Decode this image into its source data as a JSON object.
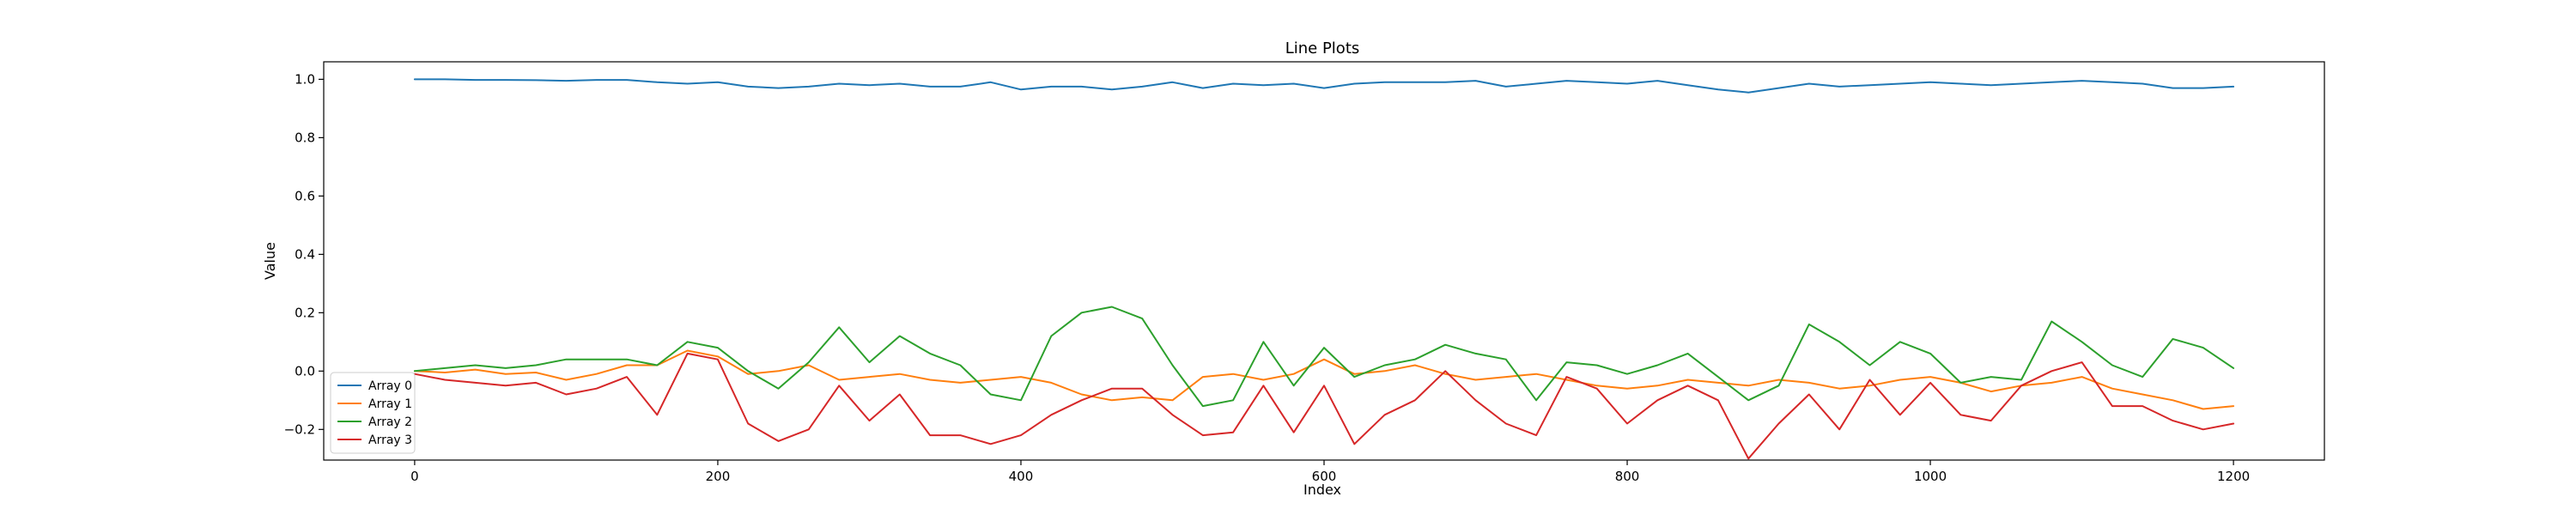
{
  "chart_data": {
    "type": "line",
    "title": "Line Plots",
    "xlabel": "Index",
    "ylabel": "Value",
    "xlim": [
      -60,
      1260
    ],
    "ylim": [
      -0.305,
      1.06
    ],
    "xticks": [
      0,
      200,
      400,
      600,
      800,
      1000,
      1200
    ],
    "yticks": [
      -0.2,
      0.0,
      0.2,
      0.4,
      0.6,
      0.8,
      1.0
    ],
    "xtick_labels": [
      "0",
      "200",
      "400",
      "600",
      "800",
      "1000",
      "1200"
    ],
    "ytick_labels": [
      "−0.2",
      "0.0",
      "0.2",
      "0.4",
      "0.6",
      "0.8",
      "1.0"
    ],
    "grid": false,
    "legend_position": "lower-left",
    "x": [
      0,
      20,
      40,
      60,
      80,
      100,
      120,
      140,
      160,
      180,
      200,
      220,
      240,
      260,
      280,
      300,
      320,
      340,
      360,
      380,
      400,
      420,
      440,
      460,
      480,
      500,
      520,
      540,
      560,
      580,
      600,
      620,
      640,
      660,
      680,
      700,
      720,
      740,
      760,
      780,
      800,
      820,
      840,
      860,
      880,
      900,
      920,
      940,
      960,
      980,
      1000,
      1020,
      1040,
      1060,
      1080,
      1100,
      1120,
      1140,
      1160,
      1180,
      1200
    ],
    "series": [
      {
        "name": "Array 0",
        "color": "#1f77b4",
        "values": [
          1.0,
          1.0,
          0.998,
          0.998,
          0.997,
          0.995,
          0.998,
          0.998,
          0.99,
          0.985,
          0.99,
          0.975,
          0.97,
          0.975,
          0.985,
          0.98,
          0.985,
          0.975,
          0.975,
          0.99,
          0.965,
          0.975,
          0.975,
          0.965,
          0.975,
          0.99,
          0.97,
          0.985,
          0.98,
          0.985,
          0.97,
          0.985,
          0.99,
          0.99,
          0.99,
          0.995,
          0.975,
          0.985,
          0.995,
          0.99,
          0.985,
          0.995,
          0.98,
          0.965,
          0.955,
          0.97,
          0.985,
          0.975,
          0.98,
          0.985,
          0.99,
          0.985,
          0.98,
          0.985,
          0.99,
          0.995,
          0.99,
          0.985,
          0.97,
          0.97,
          0.975
        ]
      },
      {
        "name": "Array 1",
        "color": "#ff7f0e",
        "values": [
          0.0,
          -0.005,
          0.005,
          -0.01,
          -0.005,
          -0.03,
          -0.01,
          0.02,
          0.02,
          0.07,
          0.05,
          -0.01,
          0.0,
          0.02,
          -0.03,
          -0.02,
          -0.01,
          -0.03,
          -0.04,
          -0.03,
          -0.02,
          -0.04,
          -0.08,
          -0.1,
          -0.09,
          -0.1,
          -0.02,
          -0.01,
          -0.03,
          -0.01,
          0.04,
          -0.01,
          0.0,
          0.02,
          -0.01,
          -0.03,
          -0.02,
          -0.01,
          -0.03,
          -0.05,
          -0.06,
          -0.05,
          -0.03,
          -0.04,
          -0.05,
          -0.03,
          -0.04,
          -0.06,
          -0.05,
          -0.03,
          -0.02,
          -0.04,
          -0.07,
          -0.05,
          -0.04,
          -0.02,
          -0.06,
          -0.08,
          -0.1,
          -0.13,
          -0.12
        ]
      },
      {
        "name": "Array 2",
        "color": "#2ca02c",
        "values": [
          0.0,
          0.01,
          0.02,
          0.01,
          0.02,
          0.04,
          0.04,
          0.04,
          0.02,
          0.1,
          0.08,
          0.0,
          -0.06,
          0.03,
          0.15,
          0.03,
          0.12,
          0.06,
          0.02,
          -0.08,
          -0.1,
          0.12,
          0.2,
          0.22,
          0.18,
          0.02,
          -0.12,
          -0.1,
          0.1,
          -0.05,
          0.08,
          -0.02,
          0.02,
          0.04,
          0.09,
          0.06,
          0.04,
          -0.1,
          0.03,
          0.02,
          -0.01,
          0.02,
          0.06,
          -0.02,
          -0.1,
          -0.05,
          0.16,
          0.1,
          0.02,
          0.1,
          0.06,
          -0.04,
          -0.02,
          -0.03,
          0.17,
          0.1,
          0.02,
          -0.02,
          0.11,
          0.08,
          0.01
        ]
      },
      {
        "name": "Array 3",
        "color": "#d62728",
        "values": [
          -0.01,
          -0.03,
          -0.04,
          -0.05,
          -0.04,
          -0.08,
          -0.06,
          -0.02,
          -0.15,
          0.06,
          0.04,
          -0.18,
          -0.24,
          -0.2,
          -0.05,
          -0.17,
          -0.08,
          -0.22,
          -0.22,
          -0.25,
          -0.22,
          -0.15,
          -0.1,
          -0.06,
          -0.06,
          -0.15,
          -0.22,
          -0.21,
          -0.05,
          -0.21,
          -0.05,
          -0.25,
          -0.15,
          -0.1,
          0.0,
          -0.1,
          -0.18,
          -0.22,
          -0.02,
          -0.06,
          -0.18,
          -0.1,
          -0.05,
          -0.1,
          -0.3,
          -0.18,
          -0.08,
          -0.2,
          -0.03,
          -0.15,
          -0.04,
          -0.15,
          -0.17,
          -0.05,
          0.0,
          0.03,
          -0.12,
          -0.12,
          -0.17,
          -0.2,
          -0.18
        ]
      }
    ]
  }
}
